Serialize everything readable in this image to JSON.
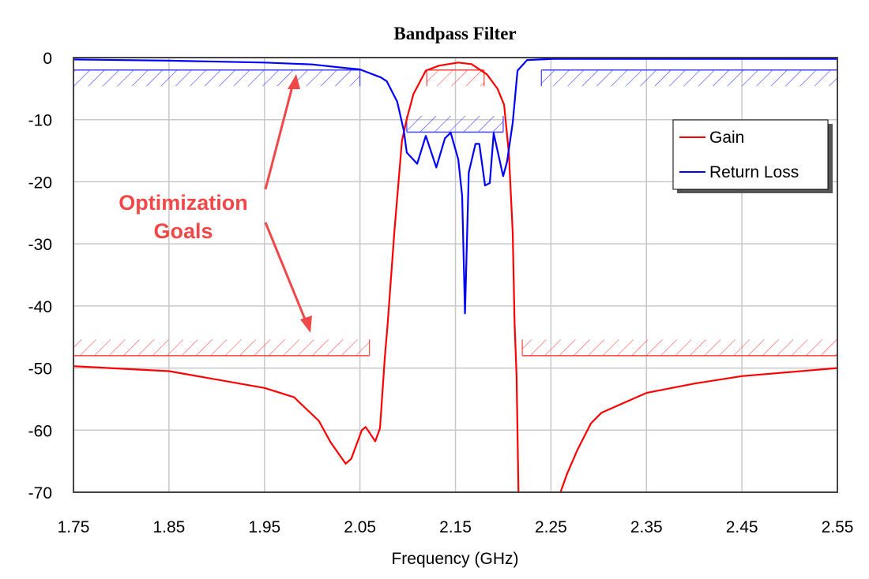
{
  "chart_data": {
    "type": "line",
    "title": "Bandpass Filter",
    "xlabel": "Frequency (GHz)",
    "ylabel": "",
    "xlim": [
      1.75,
      2.55
    ],
    "ylim": [
      -70,
      0
    ],
    "xticks": [
      "1.75",
      "1.85",
      "1.95",
      "2.05",
      "2.15",
      "2.25",
      "2.35",
      "2.45",
      "2.55"
    ],
    "yticks": [
      "0",
      "-10",
      "-20",
      "-30",
      "-40",
      "-50",
      "-60",
      "-70"
    ],
    "grid": true,
    "legend_position": "top-right",
    "series": [
      {
        "name": "Gain",
        "color": "#ff0000",
        "x": [
          1.75,
          1.85,
          1.95,
          1.981,
          2.007,
          2.019,
          2.035,
          2.041,
          2.052,
          2.056,
          2.066,
          2.071,
          2.076,
          2.079,
          2.086,
          2.094,
          2.099,
          2.106,
          2.119,
          2.133,
          2.153,
          2.167,
          2.183,
          2.194,
          2.201,
          2.206,
          2.21,
          2.212,
          2.214,
          2.216
        ],
        "y": [
          -49.7,
          -50.5,
          -53.2,
          -54.7,
          -58.5,
          -61.9,
          -65.4,
          -64.6,
          -60,
          -59.5,
          -61.8,
          -59.7,
          -48.3,
          -42.9,
          -28.2,
          -13.4,
          -9.9,
          -5.9,
          -2.1,
          -1.3,
          -0.8,
          -1.05,
          -2.7,
          -5,
          -7.6,
          -15.5,
          -28.2,
          -42.9,
          -51.3,
          -70
        ]
      },
      {
        "name": "Gain",
        "color": "#ff0000",
        "x": [
          2.26,
          2.267,
          2.278,
          2.292,
          2.303,
          2.35,
          2.4,
          2.45,
          2.55
        ],
        "y": [
          -70,
          -67,
          -63.1,
          -58.9,
          -57.2,
          -54,
          -52.5,
          -51.3,
          -50
        ]
      },
      {
        "name": "Return Loss",
        "color": "#0000ff",
        "x": [
          1.75,
          1.85,
          1.95,
          2.0,
          2.036,
          2.05,
          2.072,
          2.078,
          2.089,
          2.096,
          2.099,
          2.11,
          2.119,
          2.13,
          2.139,
          2.145,
          2.153,
          2.157,
          2.16,
          2.164,
          2.171,
          2.175,
          2.181,
          2.186,
          2.19,
          2.2,
          2.204,
          2.21,
          2.215,
          2.225,
          2.253,
          2.55
        ],
        "y": [
          -0.3,
          -0.5,
          -0.8,
          -1.1,
          -1.7,
          -1.9,
          -3.2,
          -3.8,
          -7.1,
          -11.8,
          -15.3,
          -17.1,
          -12.6,
          -17.7,
          -13,
          -12.1,
          -16.4,
          -22.3,
          -41.2,
          -18.5,
          -13.9,
          -13.9,
          -20.6,
          -20.2,
          -12.2,
          -19.1,
          -16.8,
          -10.5,
          -2.1,
          -0.4,
          -0.2,
          -0.2
        ]
      }
    ],
    "goals": [
      {
        "series": "Gain",
        "x": [
          1.75,
          2.06
        ],
        "level": -48,
        "side": "above",
        "color": "#ff4040"
      },
      {
        "series": "Gain",
        "x": [
          2.22,
          2.55
        ],
        "level": -48,
        "side": "above",
        "color": "#ff4040"
      },
      {
        "series": "Gain",
        "x": [
          2.12,
          2.18
        ],
        "level": -2,
        "side": "below",
        "color": "#ff4040"
      },
      {
        "series": "Return Loss",
        "x": [
          1.75,
          2.05
        ],
        "level": -2,
        "side": "below",
        "color": "#4040ff"
      },
      {
        "series": "Return Loss",
        "x": [
          2.24,
          2.55
        ],
        "level": -2,
        "side": "below",
        "color": "#4040ff"
      },
      {
        "series": "Return Loss",
        "x": [
          2.099,
          2.2
        ],
        "level": -12,
        "side": "above",
        "color": "#4040ff"
      }
    ],
    "annotation": {
      "line1": "Optimization",
      "line2": "Goals",
      "color": "#f04848"
    },
    "legend": [
      {
        "label": "Gain",
        "color": "#ff0000"
      },
      {
        "label": "Return Loss",
        "color": "#0000ff"
      }
    ]
  }
}
